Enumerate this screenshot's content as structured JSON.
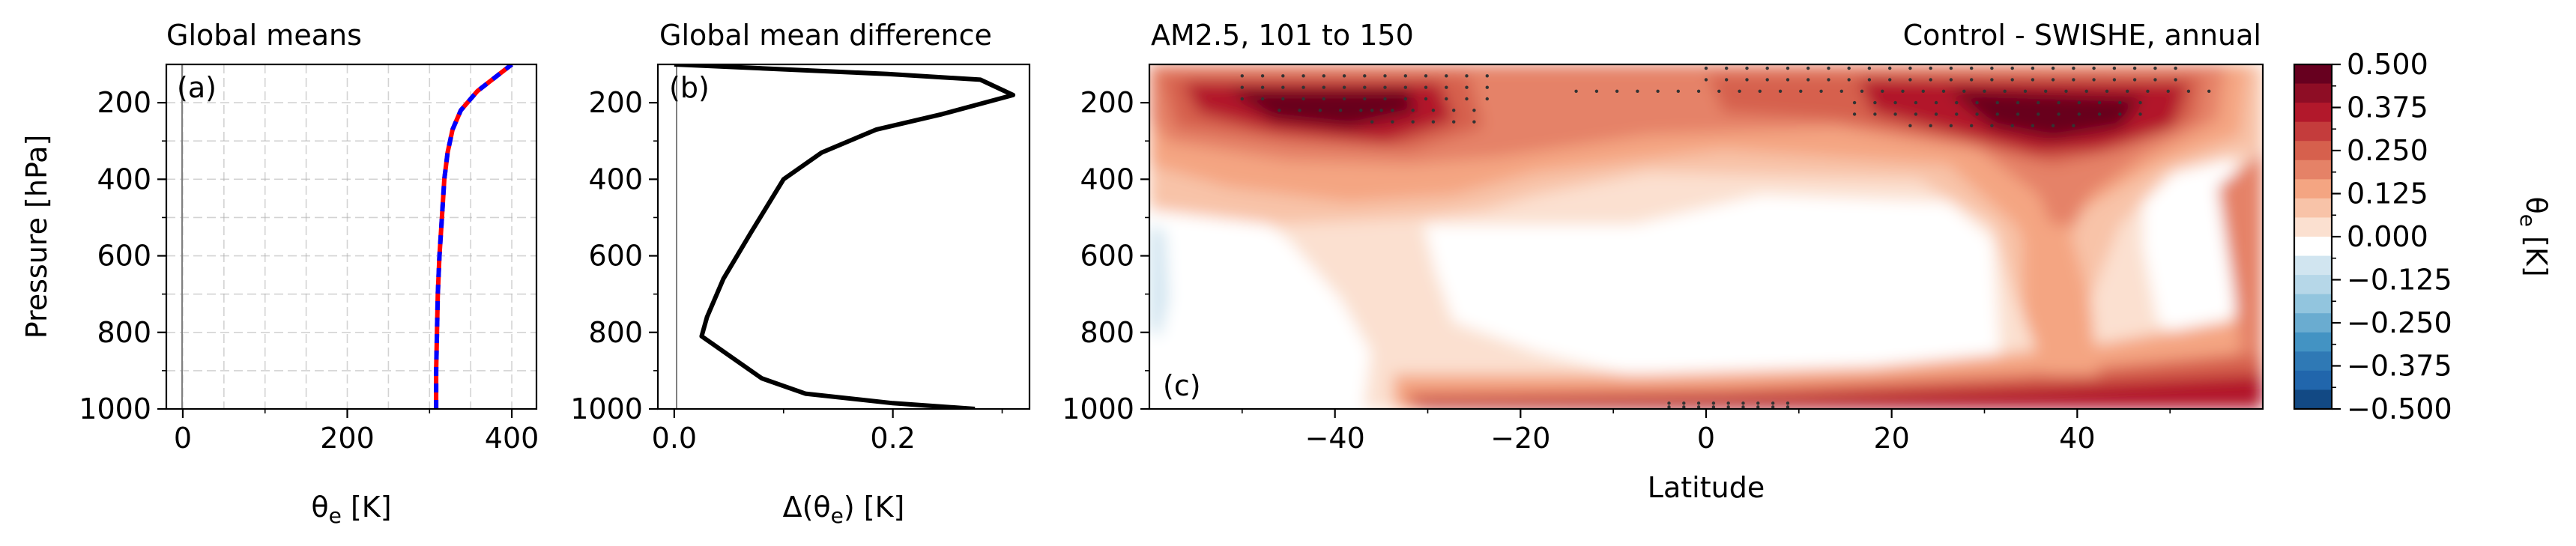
{
  "panels": [
    {
      "id": "a",
      "title": "Global means",
      "corner_label": "(a)",
      "ylabel": "Pressure [hPa]",
      "xlabel": "θe [K]",
      "xticks": [
        "0",
        "200",
        "400"
      ],
      "yticks": [
        "200",
        "400",
        "600",
        "800",
        "1000"
      ]
    },
    {
      "id": "b",
      "title": "Global mean difference",
      "corner_label": "(b)",
      "xlabel": "Δ(θe) [K]",
      "xticks": [
        "0.0",
        "0.2"
      ],
      "yticks": [
        "200",
        "400",
        "600",
        "800",
        "1000"
      ]
    },
    {
      "id": "c",
      "title_left": "AM2.5, 101 to 150",
      "title_right": "Control - SWISHE, annual",
      "corner_label": "(c)",
      "xlabel": "Latitude",
      "xticks": [
        "−40",
        "−20",
        "0",
        "20",
        "40"
      ],
      "yticks": [
        "200",
        "400",
        "600",
        "800",
        "1000"
      ]
    }
  ],
  "colorbar": {
    "label": "θe [K]",
    "ticks": [
      "0.500",
      "0.375",
      "0.250",
      "0.125",
      "0.000",
      "−0.125",
      "−0.250",
      "−0.375",
      "−0.500"
    ],
    "colors": [
      "#67001f",
      "#8e0d25",
      "#b2182b",
      "#c43c3c",
      "#d6604d",
      "#e58267",
      "#f4a582",
      "#f8c3a8",
      "#fbe0d0",
      "#ffffff",
      "#d1e5f0",
      "#b6d7e8",
      "#92c5de",
      "#6aacd0",
      "#4393c3",
      "#2f79b5",
      "#2166ac",
      "#124984"
    ]
  },
  "chart_data": [
    {
      "type": "line",
      "title": "Global means",
      "xlabel": "θe [K]",
      "ylabel": "Pressure [hPa]",
      "xlim": [
        -20,
        430
      ],
      "ylim": [
        1000,
        100
      ],
      "grid": true,
      "series": [
        {
          "color": "#ff0000",
          "style": "solid",
          "x": [
            308,
            308,
            309,
            310,
            312,
            315,
            318,
            322,
            328,
            338,
            358,
            385,
            400
          ],
          "y": [
            1000,
            900,
            800,
            700,
            600,
            500,
            400,
            330,
            270,
            220,
            170,
            125,
            100
          ]
        },
        {
          "color": "#0000ff",
          "style": "dashed",
          "x": [
            308,
            308,
            309,
            310,
            312,
            315,
            318,
            322,
            328,
            338,
            358,
            385,
            400
          ],
          "y": [
            1000,
            900,
            800,
            700,
            600,
            500,
            400,
            330,
            270,
            220,
            170,
            125,
            100
          ]
        }
      ]
    },
    {
      "type": "line",
      "title": "Global mean difference",
      "xlabel": "Δ(θe) [K]",
      "xlim": [
        -0.015,
        0.325
      ],
      "ylim": [
        1000,
        100
      ],
      "grid": false,
      "series": [
        {
          "color": "#000000",
          "style": "solid",
          "x": [
            0.275,
            0.2,
            0.12,
            0.08,
            0.05,
            0.035,
            0.025,
            0.03,
            0.045,
            0.07,
            0.1,
            0.135,
            0.185,
            0.245,
            0.31,
            0.28,
            0.195,
            0.0
          ],
          "y": [
            1000,
            985,
            960,
            920,
            860,
            830,
            810,
            760,
            660,
            540,
            400,
            330,
            270,
            230,
            180,
            140,
            125,
            100
          ]
        }
      ]
    },
    {
      "type": "heatmap",
      "title": "AM2.5, 101 to 150",
      "xlabel": "Latitude",
      "xlim": [
        -60,
        60
      ],
      "ylim": [
        1000,
        100
      ],
      "levels": [
        -0.5,
        0.5
      ],
      "description_values": {
        "upper_trop_max_south": {
          "lat": -38,
          "p": 200,
          "value": 0.5
        },
        "upper_trop_max_north": {
          "lat": 30,
          "p": 170,
          "value": 0.5
        },
        "surface_band": {
          "p": 1000,
          "value": 0.45
        },
        "mid_trop_min": {
          "lat": 10,
          "p": 600,
          "value": 0.0
        }
      }
    }
  ]
}
